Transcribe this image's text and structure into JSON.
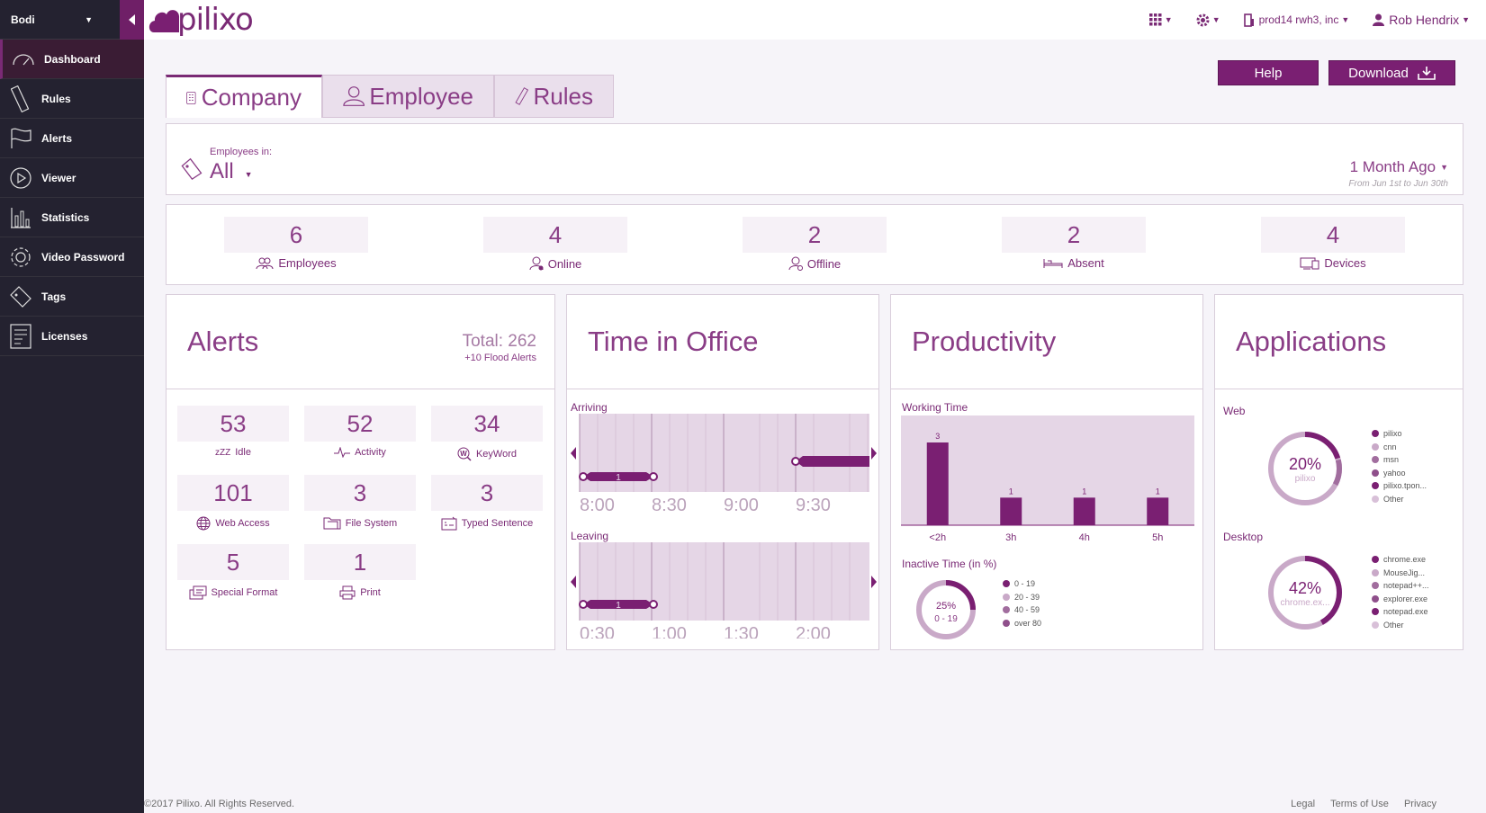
{
  "app": {
    "logo_text": "pilixo"
  },
  "sidebar": {
    "user": "Bodi",
    "items": [
      {
        "label": "Dashboard",
        "icon": "gauge-icon",
        "active": true
      },
      {
        "label": "Rules",
        "icon": "ruler-icon"
      },
      {
        "label": "Alerts",
        "icon": "flag-icon"
      },
      {
        "label": "Viewer",
        "icon": "play-icon"
      },
      {
        "label": "Statistics",
        "icon": "bar-chart-icon"
      },
      {
        "label": "Video Password",
        "icon": "gear-icon"
      },
      {
        "label": "Tags",
        "icon": "tag-icon"
      },
      {
        "label": "Licenses",
        "icon": "license-icon"
      }
    ]
  },
  "topbar": {
    "company": "prod14 rwh3, inc",
    "user": "Rob Hendrix"
  },
  "tabs": [
    {
      "label": "Company",
      "icon": "building-icon",
      "active": true
    },
    {
      "label": "Employee",
      "icon": "person-icon"
    },
    {
      "label": "Rules",
      "icon": "ruler-icon"
    }
  ],
  "buttons": {
    "help": "Help",
    "download": "Download"
  },
  "filter": {
    "label": "Employees in:",
    "value": "All",
    "period": "1 Month Ago",
    "range": "From Jun 1st to Jun 30th"
  },
  "stats": [
    {
      "value": "6",
      "label": "Employees",
      "icon": "group-icon"
    },
    {
      "value": "4",
      "label": "Online",
      "icon": "user-online-icon"
    },
    {
      "value": "2",
      "label": "Offline",
      "icon": "user-offline-icon"
    },
    {
      "value": "2",
      "label": "Absent",
      "icon": "bed-icon"
    },
    {
      "value": "4",
      "label": "Devices",
      "icon": "devices-icon"
    }
  ],
  "alerts": {
    "title": "Alerts",
    "total": "Total: 262",
    "flood": "+10 Flood Alerts",
    "items": [
      {
        "value": "53",
        "label": "Idle",
        "icon": "sleep-icon"
      },
      {
        "value": "52",
        "label": "Activity",
        "icon": "pulse-icon"
      },
      {
        "value": "34",
        "label": "KeyWord",
        "icon": "keyword-icon"
      },
      {
        "value": "101",
        "label": "Web Access",
        "icon": "globe-icon"
      },
      {
        "value": "3",
        "label": "File System",
        "icon": "folder-icon"
      },
      {
        "value": "3",
        "label": "Typed Sentence",
        "icon": "typing-icon"
      },
      {
        "value": "5",
        "label": "Special Format",
        "icon": "format-icon"
      },
      {
        "value": "1",
        "label": "Print",
        "icon": "printer-icon"
      }
    ]
  },
  "time_in_office": {
    "title": "Time in Office",
    "arriving": {
      "label": "Arriving",
      "ticks": [
        "8:00",
        "8:30",
        "9:00",
        "9:30"
      ],
      "badge": "1"
    },
    "leaving": {
      "label": "Leaving",
      "ticks": "0:30|1:00|1:30|2:00",
      "badge": "1"
    }
  },
  "productivity": {
    "title": "Productivity",
    "working_label": "Working Time",
    "inactive_label": "Inactive Time (in %)",
    "donut_value": "25%",
    "donut_sub": "0 - 19",
    "legend": [
      "0 - 19",
      "20 - 39",
      "40 - 59",
      "over 80"
    ]
  },
  "applications": {
    "title": "Applications",
    "web": {
      "label": "Web",
      "percent": "20%",
      "sub": "pilixo",
      "legend": [
        "pilixo",
        "cnn",
        "msn",
        "yahoo",
        "pilixo.tpon...",
        "Other"
      ]
    },
    "desktop": {
      "label": "Desktop",
      "percent": "42%",
      "sub": "chrome.ex...",
      "legend": [
        "chrome.exe",
        "MouseJig...",
        "notepad++...",
        "explorer.exe",
        "notepad.exe",
        "Other"
      ]
    }
  },
  "chart_data": [
    {
      "type": "bar",
      "title": "Working Time",
      "categories": [
        "<2h",
        "3h",
        "4h",
        "5h"
      ],
      "values": [
        3,
        1,
        1,
        1
      ]
    },
    {
      "type": "pie",
      "title": "Inactive Time (in %)",
      "categories": [
        "0 - 19",
        "20 - 39",
        "40 - 59",
        "over 80"
      ],
      "values": [
        25,
        0,
        0,
        0
      ]
    }
  ],
  "footer": {
    "copyright": "©2017 Pilixo. All Rights Reserved.",
    "links": [
      "Legal",
      "Terms of Use",
      "Privacy"
    ]
  },
  "colors": {
    "brand": "#7a1f72",
    "light": "#e8dbea",
    "mid": "#c9a9c8"
  }
}
